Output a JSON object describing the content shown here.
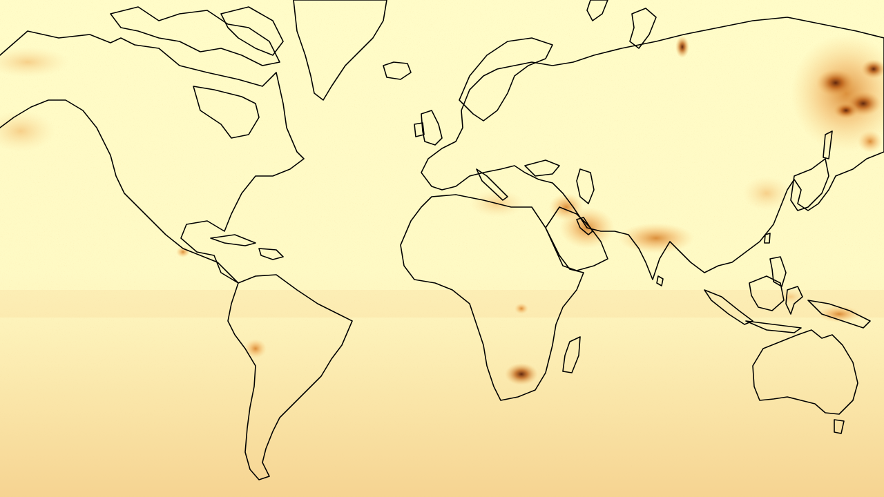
{
  "map": {
    "projection": "mercator",
    "colors": {
      "background": "#fffcc8",
      "low": "#fdeeb4",
      "medium": "#f3b45c",
      "high": "#c8640f",
      "very_high": "#5a1e06",
      "coastline": "#000000"
    },
    "hotspots": [
      {
        "region": "eastern-siberia",
        "level": "very_high"
      },
      {
        "region": "arabian-peninsula",
        "level": "high"
      },
      {
        "region": "southern-africa",
        "level": "high"
      },
      {
        "region": "indo-gangetic-plain",
        "level": "high"
      },
      {
        "region": "eastern-china",
        "level": "medium"
      },
      {
        "region": "alaska-yukon",
        "level": "medium"
      },
      {
        "region": "andes",
        "level": "medium"
      },
      {
        "region": "indonesia",
        "level": "medium"
      },
      {
        "region": "novaya-zemlya",
        "level": "high"
      }
    ]
  }
}
